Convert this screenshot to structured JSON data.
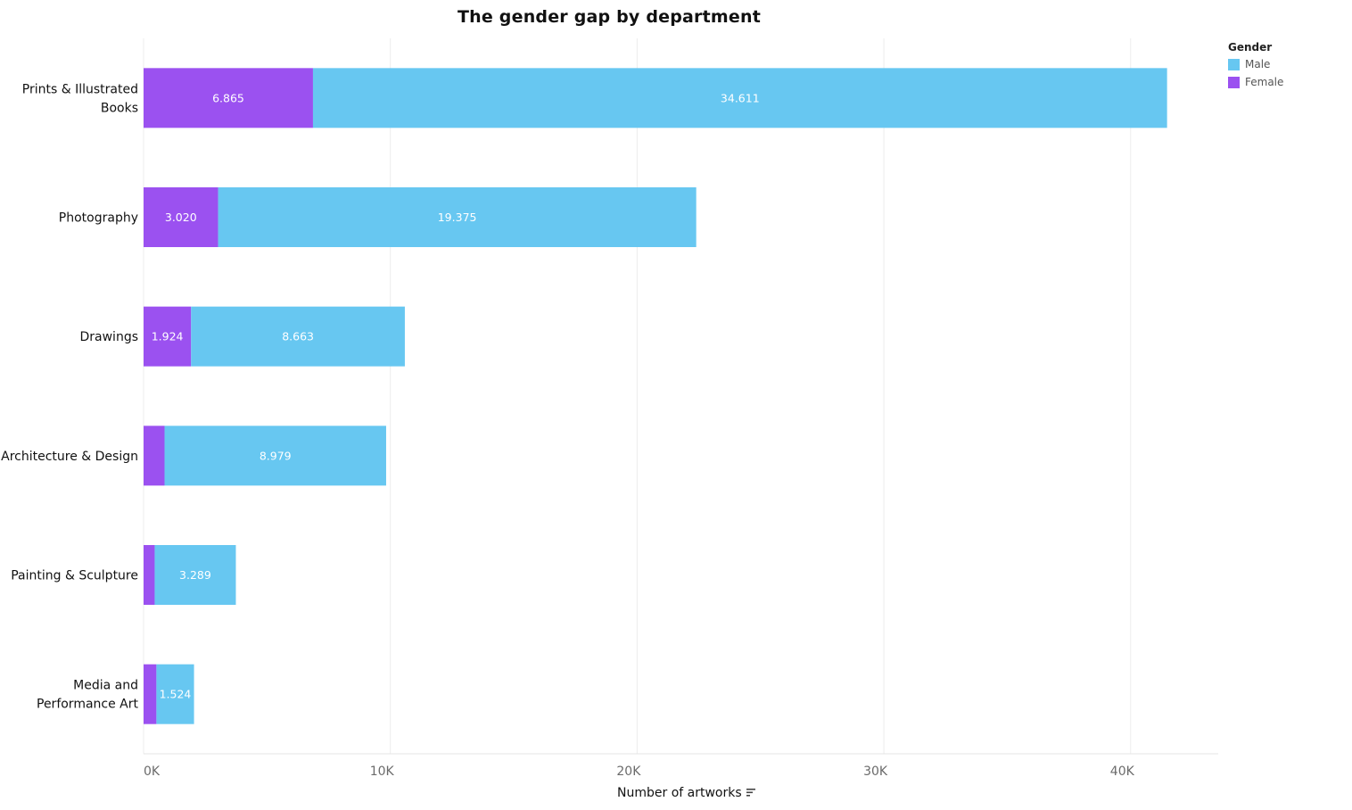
{
  "chart_data": {
    "type": "bar",
    "orientation": "horizontal",
    "stacked": true,
    "title": "The gender gap by department",
    "xlabel": "Number of artworks",
    "ylabel": "",
    "xlim": [
      0,
      43500
    ],
    "x_ticks": [
      {
        "value": 0,
        "label": "0K"
      },
      {
        "value": 10000,
        "label": "10K"
      },
      {
        "value": 20000,
        "label": "20K"
      },
      {
        "value": 30000,
        "label": "30K"
      },
      {
        "value": 40000,
        "label": "40K"
      }
    ],
    "grid": true,
    "legend_position": "top-right",
    "legend_title": "Gender",
    "categories": [
      [
        "Prints & Illustrated",
        "Books"
      ],
      [
        "Photography"
      ],
      [
        "Drawings"
      ],
      [
        "Architecture & Design"
      ],
      [
        "Painting & Sculpture"
      ],
      [
        "Media and",
        "Performance Art"
      ]
    ],
    "series": [
      {
        "name": "Female",
        "color": "#9b51f0",
        "values": [
          6865,
          3020,
          1924,
          850,
          450,
          520
        ],
        "labels": [
          "6.865",
          "3.020",
          "1.924",
          "",
          "",
          ""
        ]
      },
      {
        "name": "Male",
        "color": "#67c7f1",
        "values": [
          34611,
          19375,
          8663,
          8979,
          3289,
          1524
        ],
        "labels": [
          "34.611",
          "19.375",
          "8.663",
          "8.979",
          "3.289",
          "1.524"
        ]
      }
    ],
    "legend_entries": [
      {
        "name": "Male",
        "color": "#67c7f1"
      },
      {
        "name": "Female",
        "color": "#9b51f0"
      }
    ]
  }
}
